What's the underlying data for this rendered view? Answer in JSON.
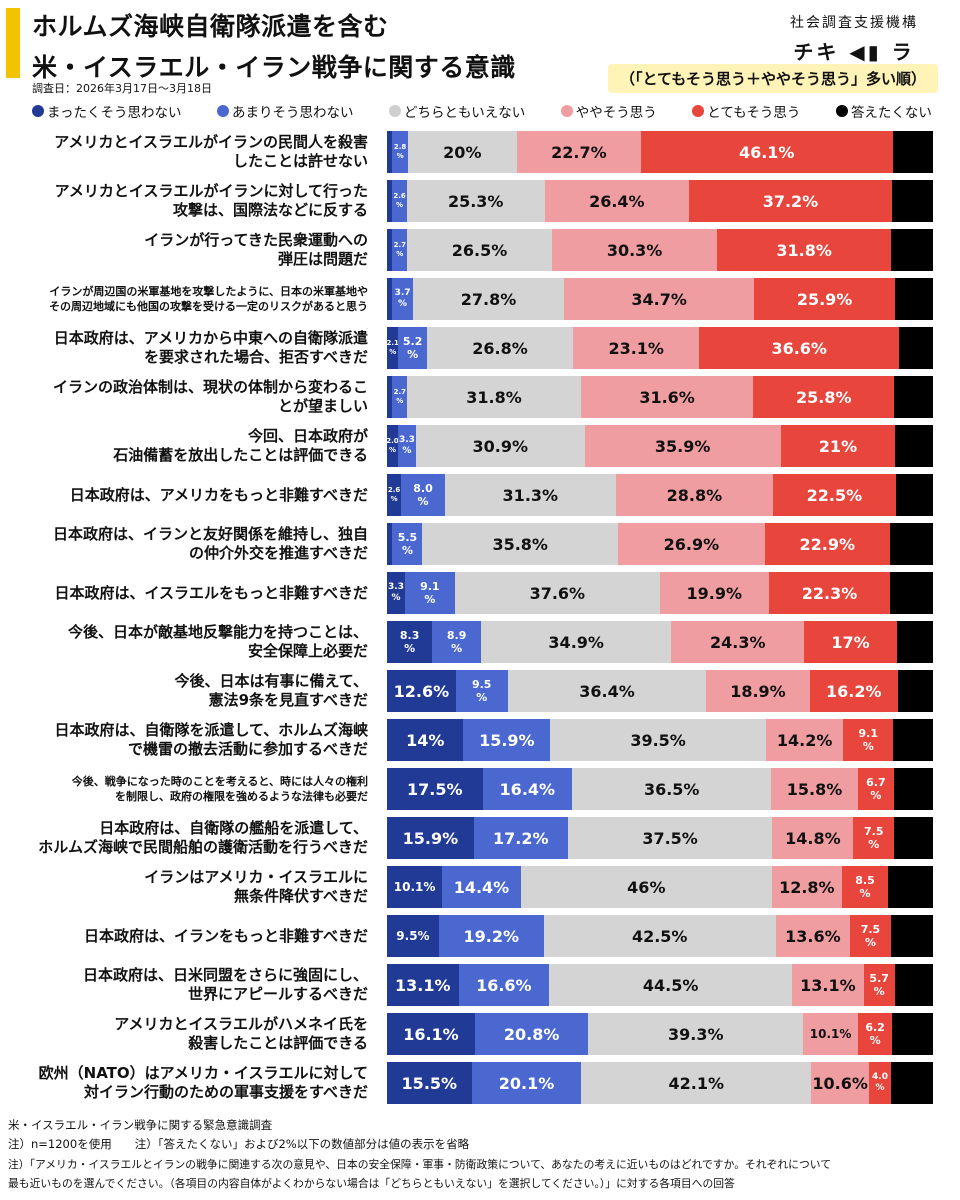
{
  "header": {
    "title_line1": "ホルムズ海峡自衛隊派遣を含む",
    "title_line2": "米・イスラエル・イラン戦争に関する意識",
    "survey_date": "調査日：2026年3月17日〜3月18日",
    "org_line1": "社会調査支援機構",
    "org_line2": "チキ ◀▮ ラボ",
    "order_note": "（「とてもそう思う＋ややそう思う」多い順）"
  },
  "colors": {
    "strongly_disagree": "#203a96",
    "somewhat_disagree": "#4a68d0",
    "neutral": "#d4d4d4",
    "somewhat_agree": "#ef9da0",
    "strongly_agree": "#e8453c",
    "no_answer": "#000000",
    "accent": "#f2c400"
  },
  "legend": [
    {
      "label": "まったくそう思わない",
      "color": "#203a96"
    },
    {
      "label": "あまりそう思わない",
      "color": "#4a68d0"
    },
    {
      "label": "どちらともいえない",
      "color": "#cfcfcf"
    },
    {
      "label": "ややそう思う",
      "color": "#ef9da0"
    },
    {
      "label": "とてもそう思う",
      "color": "#e8453c"
    },
    {
      "label": "答えたくない",
      "color": "#000000"
    }
  ],
  "chart_data": {
    "type": "bar",
    "orientation": "horizontal",
    "stacked": true,
    "normalized": true,
    "series_order": [
      "まったくそう思わない",
      "あまりそう思わない",
      "どちらともいえない",
      "ややそう思う",
      "とてもそう思う",
      "答えたくない"
    ],
    "rows": [
      {
        "label": "アメリカとイスラエルがイランの民間人を殺害\nしたことは許せない",
        "values": [
          1.0,
          2.8,
          20.0,
          22.7,
          46.1,
          7.4
        ],
        "labels": [
          "",
          "2.8\n%",
          "20%",
          "22.7%",
          "46.1%",
          ""
        ]
      },
      {
        "label": "アメリカとイスラエルがイランに対して行った\n攻撃は、国際法などに反する",
        "values": [
          1.0,
          2.6,
          25.3,
          26.4,
          37.2,
          7.5
        ],
        "labels": [
          "",
          "2.6\n%",
          "25.3%",
          "26.4%",
          "37.2%",
          ""
        ]
      },
      {
        "label": "イランが行ってきた民衆運動への\n弾圧は問題だ",
        "values": [
          1.0,
          2.7,
          26.5,
          30.3,
          31.8,
          7.7
        ],
        "labels": [
          "",
          "2.7\n%",
          "26.5%",
          "30.3%",
          "31.8%",
          ""
        ]
      },
      {
        "label": "イランが周辺国の米軍基地を攻撃したように、日本の米軍基地や\nその周辺地域にも他国の攻撃を受ける一定のリスクがあると思う",
        "values": [
          1.0,
          3.7,
          27.8,
          34.7,
          25.9,
          6.9
        ],
        "labels": [
          "",
          "3.7\n%",
          "27.8%",
          "34.7%",
          "25.9%",
          ""
        ]
      },
      {
        "label": "日本政府は、アメリカから中東への自衛隊派遣\nを要求された場合、拒否すべきだ",
        "values": [
          2.1,
          5.2,
          26.8,
          23.1,
          36.6,
          6.2
        ],
        "labels": [
          "2.1\n%",
          "5.2\n%",
          "26.8%",
          "23.1%",
          "36.6%",
          ""
        ]
      },
      {
        "label": "イランの政治体制は、現状の体制から変わるこ\nとが望ましい",
        "values": [
          1.0,
          2.7,
          31.8,
          31.6,
          25.8,
          7.1
        ],
        "labels": [
          "",
          "2.7\n%",
          "31.8%",
          "31.6%",
          "25.8%",
          ""
        ]
      },
      {
        "label": "今回、日本政府が\n石油備蓄を放出したことは評価できる",
        "values": [
          2.0,
          3.3,
          30.9,
          35.9,
          21.0,
          6.9
        ],
        "labels": [
          "2.0\n%",
          "3.3\n%",
          "30.9%",
          "35.9%",
          "21%",
          ""
        ]
      },
      {
        "label": "日本政府は、アメリカをもっと非難すべきだ",
        "values": [
          2.6,
          8.0,
          31.3,
          28.8,
          22.5,
          6.8
        ],
        "labels": [
          "2.6\n%",
          "8.0\n%",
          "31.3%",
          "28.8%",
          "22.5%",
          ""
        ]
      },
      {
        "label": "日本政府は、イランと友好関係を維持し、独自\nの仲介外交を推進すべきだ",
        "values": [
          1.0,
          5.5,
          35.8,
          26.9,
          22.9,
          7.9
        ],
        "labels": [
          "",
          "5.5\n%",
          "35.8%",
          "26.9%",
          "22.9%",
          ""
        ]
      },
      {
        "label": "日本政府は、イスラエルをもっと非難すべきだ",
        "values": [
          3.3,
          9.1,
          37.6,
          19.9,
          22.3,
          7.8
        ],
        "labels": [
          "3.3\n%",
          "9.1\n%",
          "37.6%",
          "19.9%",
          "22.3%",
          ""
        ]
      },
      {
        "label": "今後、日本が敵基地反撃能力を持つことは、\n安全保障上必要だ",
        "values": [
          8.3,
          8.9,
          34.9,
          24.3,
          17.0,
          6.6
        ],
        "labels": [
          "8.3\n%",
          "8.9\n%",
          "34.9%",
          "24.3%",
          "17%",
          ""
        ]
      },
      {
        "label": "今後、日本は有事に備えて、\n憲法9条を見直すべきだ",
        "values": [
          12.6,
          9.5,
          36.4,
          18.9,
          16.2,
          6.4
        ],
        "labels": [
          "12.6%",
          "9.5\n%",
          "36.4%",
          "18.9%",
          "16.2%",
          ""
        ]
      },
      {
        "label": "日本政府は、自衛隊を派遣して、ホルムズ海峡\nで機雷の撤去活動に参加するべきだ",
        "values": [
          14.0,
          15.9,
          39.5,
          14.2,
          9.1,
          7.3
        ],
        "labels": [
          "14%",
          "15.9%",
          "39.5%",
          "14.2%",
          "9.1\n%",
          ""
        ]
      },
      {
        "label": "今後、戦争になった時のことを考えると、時には人々の権利\nを制限し、政府の権限を強めるような法律も必要だ",
        "values": [
          17.5,
          16.4,
          36.5,
          15.8,
          6.7,
          7.1
        ],
        "labels": [
          "17.5%",
          "16.4%",
          "36.5%",
          "15.8%",
          "6.7\n%",
          ""
        ]
      },
      {
        "label": "日本政府は、自衛隊の艦船を派遣して、\nホルムズ海峡で民間船舶の護衛活動を行うべきだ",
        "values": [
          15.9,
          17.2,
          37.5,
          14.8,
          7.5,
          7.1
        ],
        "labels": [
          "15.9%",
          "17.2%",
          "37.5%",
          "14.8%",
          "7.5\n%",
          ""
        ]
      },
      {
        "label": "イランはアメリカ・イスラエルに\n無条件降伏すべきだ",
        "values": [
          10.1,
          14.4,
          46.0,
          12.8,
          8.5,
          8.2
        ],
        "labels": [
          "10.1%",
          "14.4%",
          "46%",
          "12.8%",
          "8.5\n%",
          ""
        ]
      },
      {
        "label": "日本政府は、イランをもっと非難すべきだ",
        "values": [
          9.5,
          19.2,
          42.5,
          13.6,
          7.5,
          7.7
        ],
        "labels": [
          "9.5%",
          "19.2%",
          "42.5%",
          "13.6%",
          "7.5\n%",
          ""
        ]
      },
      {
        "label": "日本政府は、日米同盟をさらに強固にし、\n世界にアピールするべきだ",
        "values": [
          13.1,
          16.6,
          44.5,
          13.1,
          5.7,
          7.0
        ],
        "labels": [
          "13.1%",
          "16.6%",
          "44.5%",
          "13.1%",
          "5.7\n%",
          ""
        ]
      },
      {
        "label": "アメリカとイスラエルがハメネイ氏を\n殺害したことは評価できる",
        "values": [
          16.1,
          20.8,
          39.3,
          10.1,
          6.2,
          7.5
        ],
        "labels": [
          "16.1%",
          "20.8%",
          "39.3%",
          "10.1%",
          "6.2\n%",
          ""
        ]
      },
      {
        "label": "欧州（NATO）はアメリカ・イスラエルに対して\n対イラン行動のための軍事支援をすべきだ",
        "values": [
          15.5,
          20.1,
          42.1,
          10.6,
          4.0,
          7.7
        ],
        "labels": [
          "15.5%",
          "20.1%",
          "42.1%",
          "10.6%",
          "4.0\n%",
          ""
        ]
      }
    ]
  },
  "footer": {
    "line1": "米・イスラエル・イラン戦争に関する緊急意識調査",
    "line2": "注）n=1200を使用　　注）「答えたくない」および2%以下の数値部分は値の表示を省略",
    "line3": "注）「アメリカ・イスラエルとイランの戦争に関連する次の意見や、日本の安全保障・軍事・防衛政策について、あなたの考えに近いものはどれですか。それぞれについて",
    "line4": "最も近いものを選んでください。（各項目の内容自体がよくわからない場合は「どちらともいえない」を選択してください。）」に対する各項目への回答"
  }
}
